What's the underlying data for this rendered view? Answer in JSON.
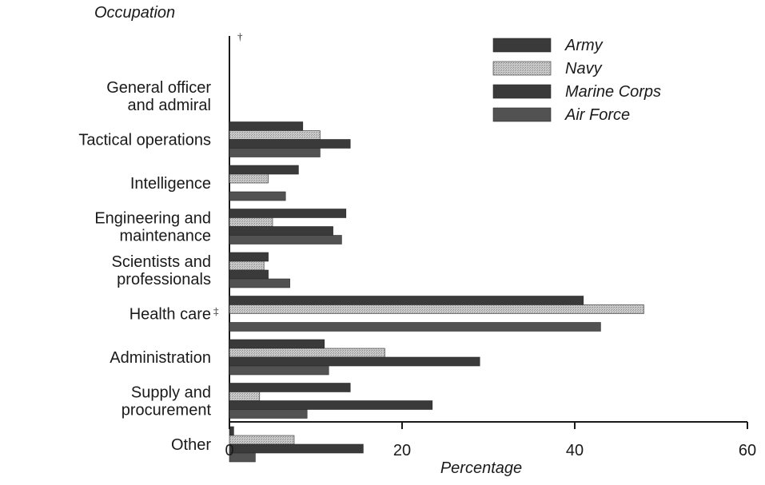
{
  "chart_data": {
    "type": "bar",
    "orientation": "horizontal",
    "categories": [
      "General officer\nand admiral",
      "Tactical operations",
      "Intelligence",
      "Engineering  and\nmaintenance",
      "Scientists and\nprofessionals",
      "Health care",
      "Administration",
      "Supply and\nprocurement",
      "Other"
    ],
    "category_marks": [
      "†",
      "",
      "",
      "",
      "",
      "‡",
      "",
      "",
      ""
    ],
    "series": [
      {
        "name": "Army",
        "values": [
          0,
          8.5,
          8,
          13.5,
          4.5,
          41,
          11,
          14,
          0.5
        ],
        "color": "#3a3a3a"
      },
      {
        "name": "Navy",
        "values": [
          0,
          10.5,
          4.5,
          5,
          4,
          48,
          18,
          3.5,
          7.5
        ],
        "color": "#b3b3b3"
      },
      {
        "name": "Marine Corps",
        "values": [
          0,
          14,
          0,
          12,
          4.5,
          0,
          29,
          23.5,
          15.5
        ],
        "color": "#3a3a3a"
      },
      {
        "name": "Air Force",
        "values": [
          0,
          10.5,
          6.5,
          13,
          7,
          43,
          11.5,
          9,
          3
        ],
        "color": "#525252"
      }
    ],
    "ylabel": "Occupation",
    "xlabel": "Percentage",
    "xlim": [
      0,
      60
    ],
    "xticks": [
      "0",
      "20",
      "40",
      "60"
    ],
    "grid": false,
    "legend_position": "top-right"
  }
}
